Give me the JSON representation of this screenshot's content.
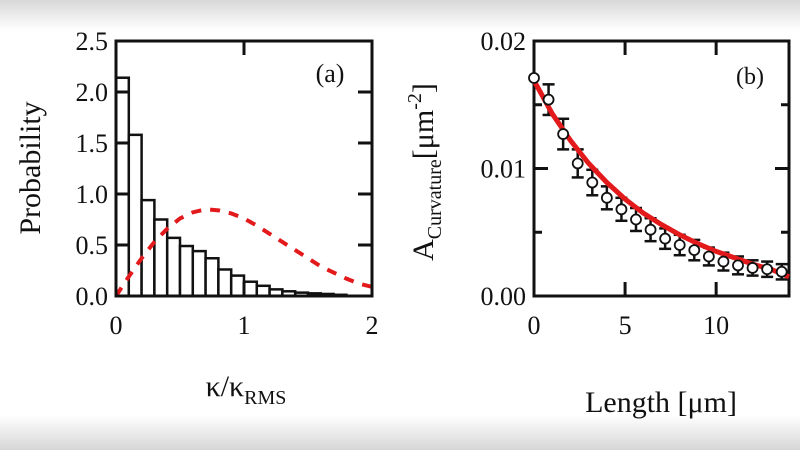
{
  "chart_data": [
    {
      "type": "bar",
      "panel_label": "(a)",
      "xlabel": "κ/κ",
      "xlabel_sub": "RMS",
      "ylabel": "Probability",
      "xlim": [
        0,
        2
      ],
      "ylim": [
        0,
        2.5
      ],
      "xticks": [
        "0",
        "1",
        "2"
      ],
      "yticks": [
        "0.0",
        "0.5",
        "1.0",
        "1.5",
        "2.0",
        "2.5"
      ],
      "bin_width": 0.1,
      "bin_starts": [
        0,
        0.1,
        0.2,
        0.3,
        0.4,
        0.5,
        0.6,
        0.7,
        0.8,
        0.9,
        1.0,
        1.1,
        1.2,
        1.3,
        1.4,
        1.5,
        1.6,
        1.7
      ],
      "values": [
        2.14,
        1.58,
        0.94,
        0.75,
        0.57,
        0.49,
        0.44,
        0.37,
        0.26,
        0.2,
        0.14,
        0.1,
        0.065,
        0.046,
        0.033,
        0.026,
        0.02,
        0.012
      ],
      "curve": {
        "style": "dashed",
        "color": "#e31a1c",
        "x": [
          0,
          0.1,
          0.2,
          0.3,
          0.4,
          0.5,
          0.6,
          0.7,
          0.8,
          0.9,
          1.0,
          1.1,
          1.2,
          1.3,
          1.4,
          1.5,
          1.6,
          1.7,
          1.8,
          1.9,
          2.0
        ],
        "y": [
          0,
          0.19,
          0.37,
          0.53,
          0.66,
          0.76,
          0.82,
          0.85,
          0.84,
          0.81,
          0.76,
          0.69,
          0.61,
          0.53,
          0.45,
          0.37,
          0.29,
          0.23,
          0.17,
          0.12,
          0.09
        ]
      }
    },
    {
      "type": "scatter",
      "panel_label": "(b)",
      "xlabel": "Length [μm]",
      "ylabel": "A",
      "ylabel_sub": "Curvature",
      "ylabel_unit": "[μm",
      "ylabel_sup": "-2",
      "ylabel_close": "]",
      "xlim": [
        0,
        14
      ],
      "ylim": [
        0,
        0.02
      ],
      "xticks": [
        "0",
        "5",
        "10"
      ],
      "yticks": [
        "0.00",
        "0.01",
        "0.02"
      ],
      "x": [
        0,
        0.8,
        1.6,
        2.4,
        3.2,
        4.0,
        4.8,
        5.6,
        6.4,
        7.2,
        8.0,
        8.8,
        9.6,
        10.4,
        11.2,
        12.0,
        12.8,
        13.6
      ],
      "y": [
        0.0171,
        0.0154,
        0.0127,
        0.0104,
        0.0089,
        0.0077,
        0.0068,
        0.006,
        0.0052,
        0.0045,
        0.004,
        0.0036,
        0.0031,
        0.0027,
        0.0024,
        0.0022,
        0.0021,
        0.0019
      ],
      "yerr": [
        0,
        0.0012,
        0.0012,
        0.0011,
        0.001,
        0.0009,
        0.0009,
        0.0009,
        0.0009,
        0.0008,
        0.0008,
        0.0008,
        0.0007,
        0.0007,
        0.0007,
        0.0006,
        0.0006,
        0.0006
      ],
      "fit": {
        "style": "solid",
        "color": "#e31a1c",
        "x": [
          0,
          1,
          2,
          3,
          4,
          5,
          6,
          7,
          8,
          9,
          10,
          11,
          12,
          13,
          14
        ],
        "y": [
          0.0169,
          0.0143,
          0.0122,
          0.0104,
          0.0089,
          0.0076,
          0.0065,
          0.0056,
          0.0048,
          0.0041,
          0.0035,
          0.003,
          0.0025,
          0.0021,
          0.0015
        ]
      }
    }
  ]
}
